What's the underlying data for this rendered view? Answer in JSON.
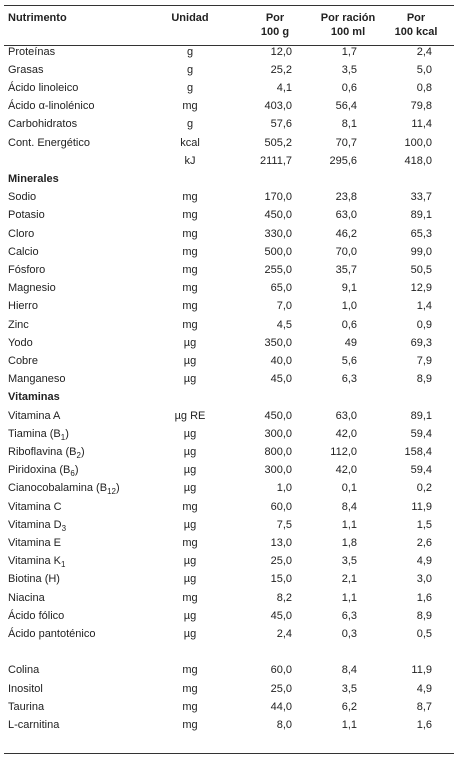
{
  "table": {
    "header": {
      "nutrient": "Nutrimento",
      "unit": "Unidad",
      "columns": [
        [
          "Por",
          "100 g"
        ],
        [
          "Por ración",
          "100 ml"
        ],
        [
          "Por",
          "100 kcal"
        ]
      ]
    },
    "sections": [
      {
        "rows": [
          {
            "name": "Proteínas",
            "unit": "g",
            "values": [
              "12,0",
              "1,7",
              "2,4"
            ]
          },
          {
            "name": "Grasas",
            "unit": "g",
            "values": [
              "25,2",
              "3,5",
              "5,0"
            ]
          },
          {
            "name": "Ácido linoleico",
            "unit": "g",
            "values": [
              "4,1",
              "0,6",
              "0,8"
            ]
          },
          {
            "name": "Ácido α-linolénico",
            "unit": "mg",
            "values": [
              "403,0",
              "56,4",
              "79,8"
            ]
          },
          {
            "name": "Carbohidratos",
            "unit": "g",
            "values": [
              "57,6",
              "8,1",
              "11,4"
            ]
          },
          {
            "name": "Cont. Energético",
            "unit": "kcal",
            "values": [
              "505,2",
              "70,7",
              "100,0"
            ]
          },
          {
            "unit": "kJ",
            "values": [
              "2111,7",
              "295,6",
              "418,0"
            ]
          }
        ]
      },
      {
        "title": "Minerales",
        "rows": [
          {
            "name": "Sodio",
            "unit": "mg",
            "values": [
              "170,0",
              "23,8",
              "33,7"
            ]
          },
          {
            "name": "Potasio",
            "unit": "mg",
            "values": [
              "450,0",
              "63,0",
              "89,1"
            ]
          },
          {
            "name": "Cloro",
            "unit": "mg",
            "values": [
              "330,0",
              "46,2",
              "65,3"
            ]
          },
          {
            "name": "Calcio",
            "unit": "mg",
            "values": [
              "500,0",
              "70,0",
              "99,0"
            ]
          },
          {
            "name": "Fósforo",
            "unit": "mg",
            "values": [
              "255,0",
              "35,7",
              "50,5"
            ]
          },
          {
            "name": "Magnesio",
            "unit": "mg",
            "values": [
              "65,0",
              "9,1",
              "12,9"
            ]
          },
          {
            "name": "Hierro",
            "unit": "mg",
            "values": [
              "7,0",
              "1,0",
              "1,4"
            ]
          },
          {
            "name": "Zinc",
            "unit": "mg",
            "values": [
              "4,5",
              "0,6",
              "0,9"
            ]
          },
          {
            "name": "Yodo",
            "unit": "µg",
            "values": [
              "350,0",
              "49",
              "69,3"
            ]
          },
          {
            "name": "Cobre",
            "unit": "µg",
            "values": [
              "40,0",
              "5,6",
              "7,9"
            ]
          },
          {
            "name": "Manganeso",
            "unit": "µg",
            "values": [
              "45,0",
              "6,3",
              "8,9"
            ]
          }
        ]
      },
      {
        "title": "Vitaminas",
        "rows": [
          {
            "name": "Vitamina A",
            "unit": "µg RE",
            "values": [
              "450,0",
              "63,0",
              "89,1"
            ]
          },
          {
            "name": "Tiamina (B",
            "sub": "1",
            "tail": ")",
            "unit": "µg",
            "values": [
              "300,0",
              "42,0",
              "59,4"
            ]
          },
          {
            "name": "Riboflavina (B",
            "sub": "2",
            "tail": ")",
            "unit": "µg",
            "values": [
              "800,0",
              "112,0",
              "158,4"
            ]
          },
          {
            "name": "Piridoxina (B",
            "sub": "6",
            "tail": ")",
            "unit": "µg",
            "values": [
              "300,0",
              "42,0",
              "59,4"
            ]
          },
          {
            "name": "Cianocobalamina (B",
            "sub": "12",
            "tail": ")",
            "unit": "µg",
            "values": [
              "1,0",
              "0,1",
              "0,2"
            ]
          },
          {
            "name": "Vitamina C",
            "unit": "mg",
            "values": [
              "60,0",
              "8,4",
              "11,9"
            ]
          },
          {
            "name": "Vitamina D",
            "sub": "3",
            "unit": "µg",
            "values": [
              "7,5",
              "1,1",
              "1,5"
            ]
          },
          {
            "name": "Vitamina E",
            "unit": "mg",
            "values": [
              "13,0",
              "1,8",
              "2,6"
            ]
          },
          {
            "name": "Vitamina K",
            "sub": "1",
            "unit": "µg",
            "values": [
              "25,0",
              "3,5",
              "4,9"
            ]
          },
          {
            "name": "Biotina (H)",
            "unit": "µg",
            "values": [
              "15,0",
              "2,1",
              "3,0"
            ]
          },
          {
            "name": "Niacina",
            "unit": "mg",
            "values": [
              "8,2",
              "1,1",
              "1,6"
            ]
          },
          {
            "name": "Ácido fólico",
            "unit": "µg",
            "values": [
              "45,0",
              "6,3",
              "8,9"
            ]
          },
          {
            "name": "Ácido pantoténico",
            "unit": "µg",
            "values": [
              "2,4",
              "0,3",
              "0,5"
            ]
          }
        ]
      },
      {
        "rows": [
          {
            "name": "Colina",
            "unit": "mg",
            "values": [
              "60,0",
              "8,4",
              "11,9"
            ]
          },
          {
            "name": "Inositol",
            "unit": "mg",
            "values": [
              "25,0",
              "3,5",
              "4,9"
            ]
          },
          {
            "name": "Taurina",
            "unit": "mg",
            "values": [
              "44,0",
              "6,2",
              "8,7"
            ]
          },
          {
            "name": "L-carnitina",
            "unit": "mg",
            "values": [
              "8,0",
              "1,1",
              "1,6"
            ]
          }
        ]
      }
    ]
  }
}
